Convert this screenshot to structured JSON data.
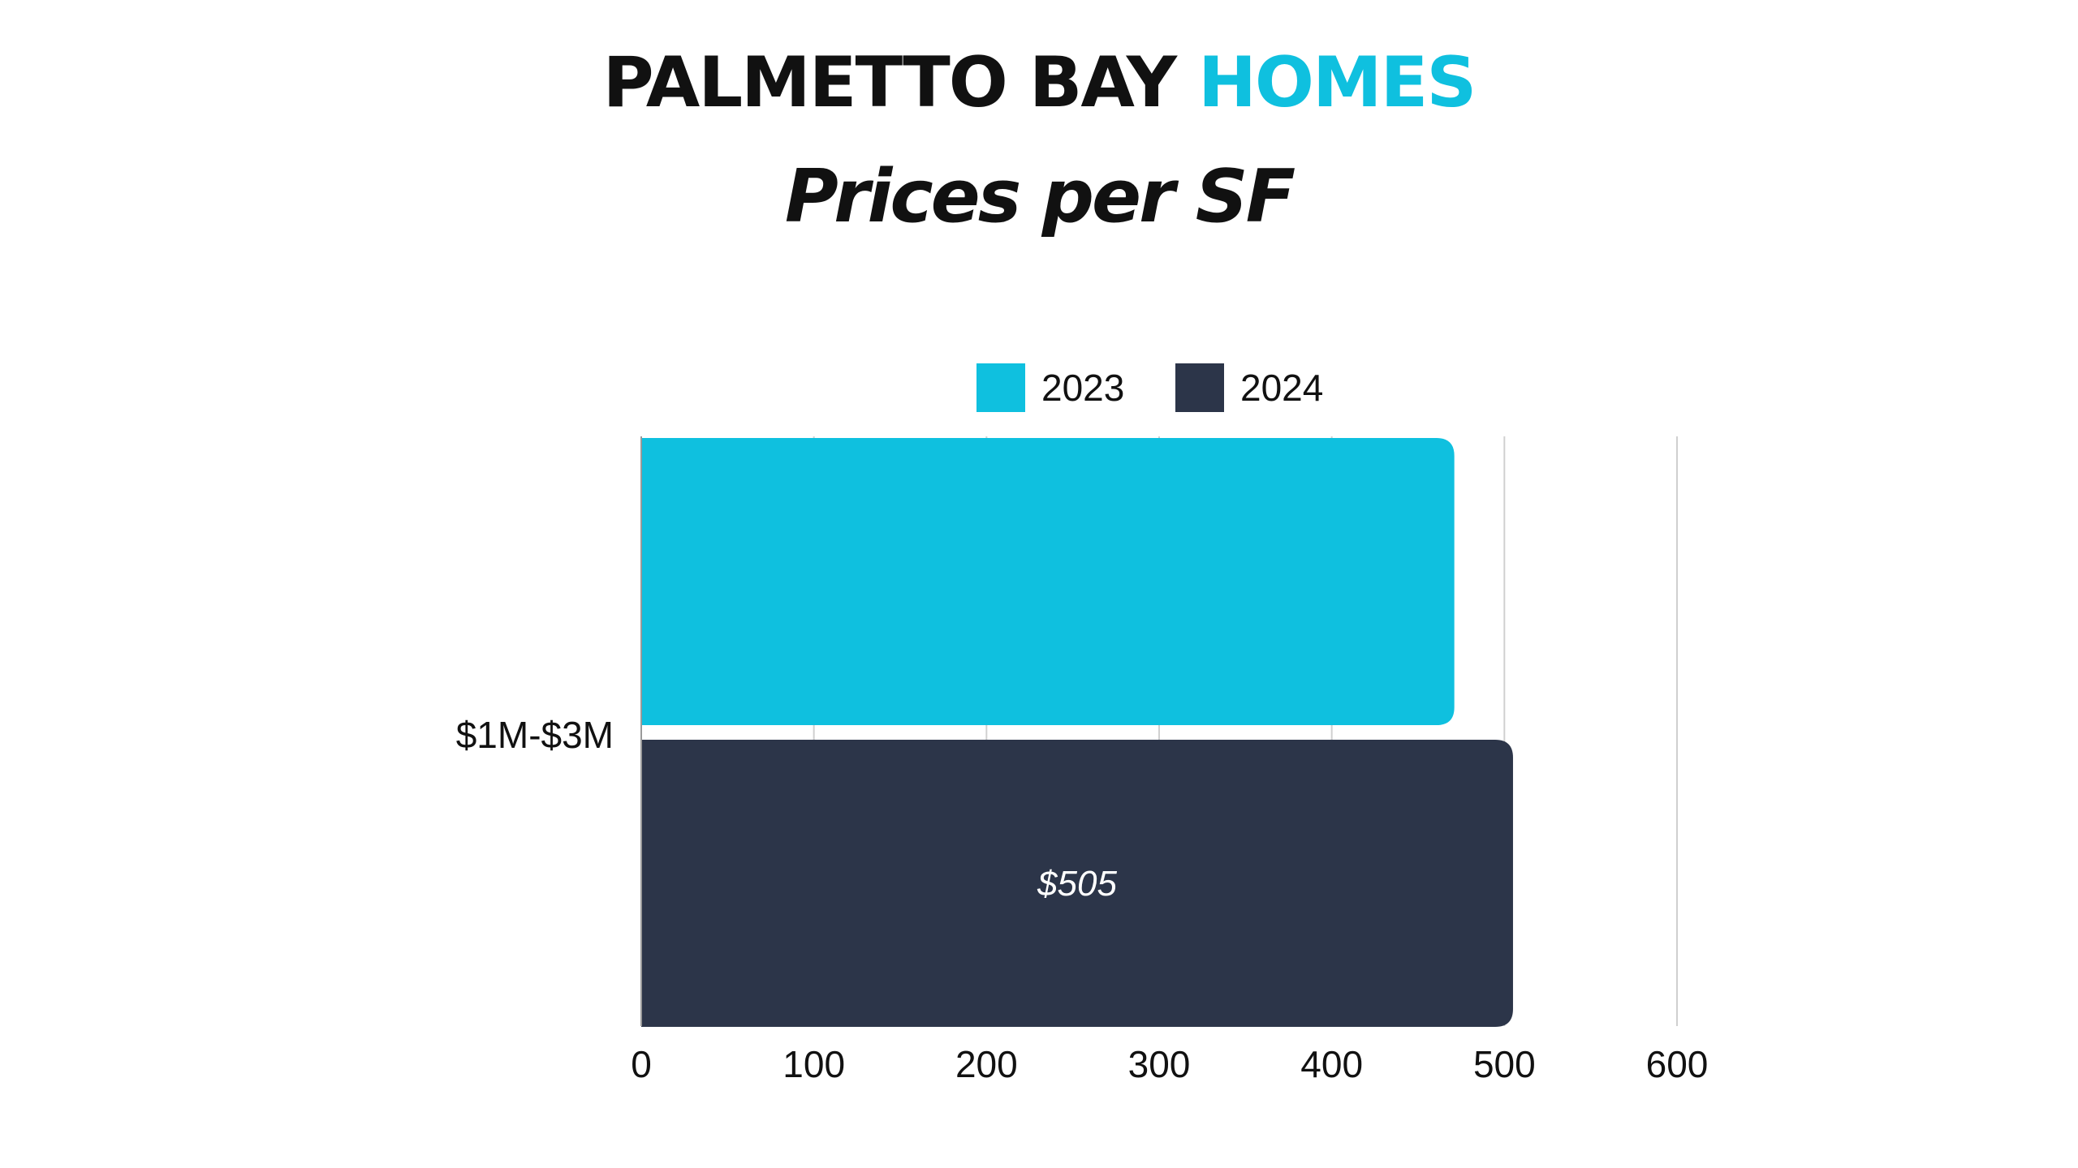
{
  "title": {
    "part1": "PALMETTO BAY",
    "part2": "HOMES",
    "subtitle": "Prices per SF"
  },
  "colors": {
    "title_text": "#111111",
    "title_accent": "#0fc0df",
    "series_2023": "#0fc0df",
    "series_2024": "#2c3549",
    "grid": "#d0d0d0",
    "background": "#ffffff"
  },
  "chart_data": {
    "type": "bar",
    "orientation": "horizontal",
    "categories": [
      "$1M-$3M"
    ],
    "series": [
      {
        "name": "2023",
        "values": [
          471
        ],
        "data_labels": [
          ""
        ]
      },
      {
        "name": "2024",
        "values": [
          505
        ],
        "data_labels": [
          "$505"
        ]
      }
    ],
    "xlim": [
      0,
      600
    ],
    "xticks": [
      0,
      100,
      200,
      300,
      400,
      500,
      600
    ],
    "xlabel": "",
    "ylabel": "",
    "grid": true,
    "legend_position": "top"
  }
}
